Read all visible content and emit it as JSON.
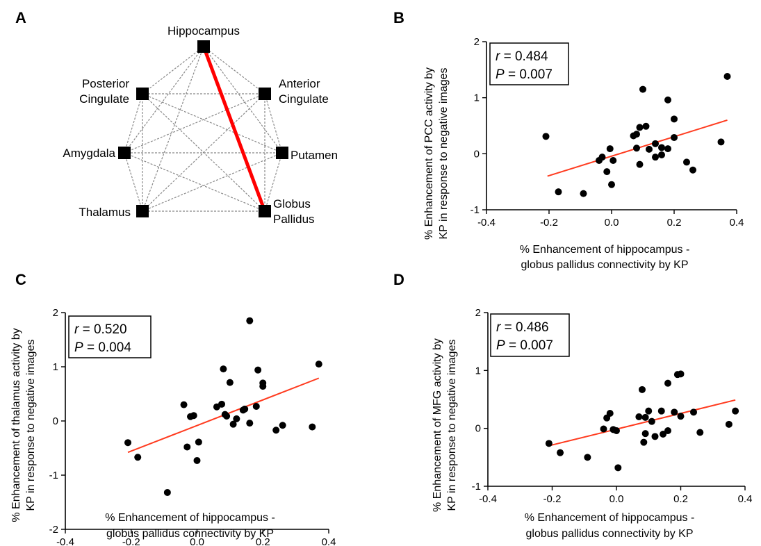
{
  "figure": {
    "network": {
      "letter": "A",
      "nodes": [
        {
          "id": "hippocampus",
          "label_lines": [
            "Hippocampus"
          ]
        },
        {
          "id": "anterior-cingulate",
          "label_lines": [
            "Anterior",
            "Cingulate"
          ]
        },
        {
          "id": "putamen",
          "label_lines": [
            "Putamen"
          ]
        },
        {
          "id": "globus-pallidus",
          "label_lines": [
            "Globus",
            "Pallidus"
          ]
        },
        {
          "id": "thalamus",
          "label_lines": [
            "Thalamus"
          ]
        },
        {
          "id": "amygdala",
          "label_lines": [
            "Amygdala"
          ]
        },
        {
          "id": "posterior-cingulate",
          "label_lines": [
            "Posterior",
            "Cingulate"
          ]
        }
      ],
      "highlight_edge": [
        "hippocampus",
        "globus-pallidus"
      ],
      "highlight_color": "#ff0000",
      "edge_color": "#888888"
    }
  },
  "chart_data": [
    {
      "letter": "B",
      "type": "scatter",
      "xlabel_lines": [
        "% Enhancement of hippocampus -",
        "globus pallidus connectivity by KP"
      ],
      "ylabel_lines": [
        "% Enhancement of PCC activity by",
        "KP in response to negative images"
      ],
      "xlim": [
        -0.4,
        0.4
      ],
      "ylim": [
        -1,
        2
      ],
      "xticks": [
        -0.4,
        -0.2,
        0.0,
        0.2,
        0.4
      ],
      "xtick_labels": [
        "-0.4",
        "-0.2",
        "0.0",
        "0.2",
        "0.4"
      ],
      "yticks": [
        -1,
        0,
        1,
        2
      ],
      "ytick_labels": [
        "-1",
        "0",
        "1",
        "2"
      ],
      "stats": {
        "r_label": "r",
        "r_value": " = 0.484",
        "p_label": "P",
        "p_value": " = 0.007"
      },
      "fit": {
        "x": [
          -0.205,
          0.37
        ],
        "y": [
          -0.4,
          0.6
        ],
        "color": "#ff3b1f"
      },
      "points": [
        {
          "x": -0.21,
          "y": 0.31
        },
        {
          "x": -0.17,
          "y": -0.68
        },
        {
          "x": -0.09,
          "y": -0.71
        },
        {
          "x": -0.04,
          "y": -0.12
        },
        {
          "x": -0.03,
          "y": -0.06
        },
        {
          "x": -0.015,
          "y": -0.32
        },
        {
          "x": -0.005,
          "y": 0.09
        },
        {
          "x": 0.0,
          "y": -0.55
        },
        {
          "x": 0.005,
          "y": -0.12
        },
        {
          "x": 0.07,
          "y": 0.32
        },
        {
          "x": 0.08,
          "y": 0.35
        },
        {
          "x": 0.08,
          "y": 0.1
        },
        {
          "x": 0.09,
          "y": 0.47
        },
        {
          "x": 0.09,
          "y": -0.19
        },
        {
          "x": 0.1,
          "y": 1.15
        },
        {
          "x": 0.11,
          "y": 0.49
        },
        {
          "x": 0.12,
          "y": 0.08
        },
        {
          "x": 0.14,
          "y": 0.18
        },
        {
          "x": 0.14,
          "y": -0.06
        },
        {
          "x": 0.16,
          "y": 0.11
        },
        {
          "x": 0.16,
          "y": -0.02
        },
        {
          "x": 0.18,
          "y": 0.96
        },
        {
          "x": 0.18,
          "y": 0.09
        },
        {
          "x": 0.2,
          "y": 0.62
        },
        {
          "x": 0.2,
          "y": 0.29
        },
        {
          "x": 0.24,
          "y": -0.15
        },
        {
          "x": 0.26,
          "y": -0.29
        },
        {
          "x": 0.35,
          "y": 0.21
        },
        {
          "x": 0.37,
          "y": 1.38
        }
      ]
    },
    {
      "letter": "C",
      "type": "scatter",
      "xlabel_lines": [
        "% Enhancement of hippocampus -",
        "globus pallidus connectivity by KP"
      ],
      "ylabel_lines": [
        "% Enhancement of thalamus activity by",
        "KP in response to negative images"
      ],
      "xlim": [
        -0.4,
        0.4
      ],
      "ylim": [
        -2,
        2
      ],
      "xticks": [
        -0.4,
        -0.2,
        0.0,
        0.2,
        0.4
      ],
      "xtick_labels": [
        "-0.4",
        "-0.2",
        "0.0",
        "0.2",
        "0.4"
      ],
      "yticks": [
        -2,
        -1,
        0,
        1,
        2
      ],
      "ytick_labels": [
        "-2",
        "-1",
        "0",
        "1",
        "2"
      ],
      "stats": {
        "r_label": "r",
        "r_value": " = 0.520",
        "p_label": "P",
        "p_value": " = 0.004"
      },
      "fit": {
        "x": [
          -0.21,
          0.37
        ],
        "y": [
          -0.58,
          0.79
        ],
        "color": "#ff3b1f"
      },
      "points": [
        {
          "x": -0.21,
          "y": -0.4
        },
        {
          "x": -0.18,
          "y": -0.67
        },
        {
          "x": -0.09,
          "y": -1.32
        },
        {
          "x": -0.04,
          "y": 0.3
        },
        {
          "x": -0.03,
          "y": -0.48
        },
        {
          "x": -0.02,
          "y": 0.08
        },
        {
          "x": -0.01,
          "y": 0.1
        },
        {
          "x": 0.0,
          "y": -0.73
        },
        {
          "x": 0.005,
          "y": -0.39
        },
        {
          "x": 0.06,
          "y": 0.26
        },
        {
          "x": 0.075,
          "y": 0.31
        },
        {
          "x": 0.08,
          "y": 0.96
        },
        {
          "x": 0.085,
          "y": 0.12
        },
        {
          "x": 0.09,
          "y": 0.09
        },
        {
          "x": 0.1,
          "y": 0.71
        },
        {
          "x": 0.11,
          "y": -0.06
        },
        {
          "x": 0.12,
          "y": 0.04
        },
        {
          "x": 0.14,
          "y": 0.2
        },
        {
          "x": 0.145,
          "y": 0.22
        },
        {
          "x": 0.16,
          "y": 1.85
        },
        {
          "x": 0.16,
          "y": -0.04
        },
        {
          "x": 0.18,
          "y": 0.27
        },
        {
          "x": 0.185,
          "y": 0.94
        },
        {
          "x": 0.2,
          "y": 0.7
        },
        {
          "x": 0.2,
          "y": 0.64
        },
        {
          "x": 0.24,
          "y": -0.17
        },
        {
          "x": 0.26,
          "y": -0.08
        },
        {
          "x": 0.35,
          "y": -0.11
        },
        {
          "x": 0.37,
          "y": 1.05
        }
      ]
    },
    {
      "letter": "D",
      "type": "scatter",
      "xlabel_lines": [
        "% Enhancement of hippocampus -",
        "globus pallidus connectivity by KP"
      ],
      "ylabel_lines": [
        "% Enhancement of MFG activity by",
        "KP in response to negative images"
      ],
      "xlim": [
        -0.4,
        0.4
      ],
      "ylim": [
        -1,
        2
      ],
      "xticks": [
        -0.4,
        -0.2,
        0.0,
        0.2,
        0.4
      ],
      "xtick_labels": [
        "-0.4",
        "-0.2",
        "0.0",
        "0.2",
        "0.4"
      ],
      "yticks": [
        -1,
        0,
        1,
        2
      ],
      "ytick_labels": [
        "-1",
        "0",
        "1",
        "2"
      ],
      "stats": {
        "r_label": "r",
        "r_value": " = 0.486",
        "p_label": "P",
        "p_value": " = 0.007"
      },
      "fit": {
        "x": [
          -0.21,
          0.37
        ],
        "y": [
          -0.3,
          0.49
        ],
        "color": "#ff3b1f"
      },
      "points": [
        {
          "x": -0.21,
          "y": -0.26
        },
        {
          "x": -0.175,
          "y": -0.42
        },
        {
          "x": -0.09,
          "y": -0.5
        },
        {
          "x": -0.04,
          "y": -0.01
        },
        {
          "x": -0.03,
          "y": 0.18
        },
        {
          "x": -0.02,
          "y": 0.26
        },
        {
          "x": -0.01,
          "y": -0.02
        },
        {
          "x": 0.0,
          "y": -0.04
        },
        {
          "x": 0.005,
          "y": -0.68
        },
        {
          "x": 0.07,
          "y": 0.2
        },
        {
          "x": 0.08,
          "y": 0.67
        },
        {
          "x": 0.085,
          "y": -0.24
        },
        {
          "x": 0.09,
          "y": -0.09
        },
        {
          "x": 0.09,
          "y": 0.19
        },
        {
          "x": 0.1,
          "y": 0.3
        },
        {
          "x": 0.11,
          "y": 0.12
        },
        {
          "x": 0.12,
          "y": -0.14
        },
        {
          "x": 0.14,
          "y": 0.3
        },
        {
          "x": 0.145,
          "y": -0.1
        },
        {
          "x": 0.16,
          "y": 0.78
        },
        {
          "x": 0.16,
          "y": -0.04
        },
        {
          "x": 0.18,
          "y": 0.28
        },
        {
          "x": 0.19,
          "y": 0.93
        },
        {
          "x": 0.2,
          "y": 0.94
        },
        {
          "x": 0.2,
          "y": 0.21
        },
        {
          "x": 0.24,
          "y": 0.28
        },
        {
          "x": 0.26,
          "y": -0.07
        },
        {
          "x": 0.35,
          "y": 0.07
        },
        {
          "x": 0.37,
          "y": 0.3
        }
      ]
    }
  ]
}
